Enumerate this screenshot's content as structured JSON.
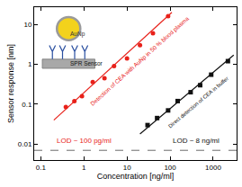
{
  "chart_data": {
    "type": "scatter",
    "log": true,
    "grid": false,
    "xlabel": "Concentration [ng/ml]",
    "ylabel": "Sensor response [nm]",
    "xlim": [
      0.07,
      3500
    ],
    "ylim": [
      0.004,
      27
    ],
    "xticks": [
      0.1,
      1,
      10,
      100,
      1000
    ],
    "yticks": [
      0.01,
      0.1,
      1,
      10
    ],
    "noise_level": 0.007,
    "series": [
      {
        "type": "scatter",
        "color": "#e8211a",
        "marker": "circle",
        "x": [
          0.38,
          0.6,
          0.9,
          1.6,
          3,
          5,
          10,
          20,
          40,
          90
        ],
        "values": [
          0.085,
          0.12,
          0.16,
          0.36,
          0.45,
          0.9,
          1.4,
          3,
          6,
          16
        ]
      },
      {
        "type": "line",
        "color": "#e8211a",
        "line_style": "solid",
        "x": [
          0.2,
          110
        ],
        "values": [
          0.04,
          20
        ]
      },
      {
        "type": "scatter",
        "color": "#111111",
        "marker": "square",
        "x": [
          30,
          50,
          90,
          150,
          300,
          500,
          900,
          2200
        ],
        "values": [
          0.03,
          0.045,
          0.07,
          0.12,
          0.2,
          0.3,
          0.55,
          1.2
        ]
      },
      {
        "type": "line",
        "color": "#111111",
        "line_style": "solid",
        "x": [
          20,
          3000
        ],
        "values": [
          0.018,
          1.7
        ]
      }
    ],
    "annotations": [
      {
        "text": "Detection of CEA with AuNp in 50 % blood plasma",
        "color": "#e8211a"
      },
      {
        "text": "Direct detection of CEA in buffer",
        "color": "#111111"
      },
      {
        "text": "LOD ~ 100 pg/ml",
        "color": "#e8211a"
      },
      {
        "text": "LOD ~ 8 ng/ml",
        "color": "#111111"
      }
    ],
    "inset": {
      "particle": "AuNp",
      "sensor": "SPR Sensor"
    }
  }
}
